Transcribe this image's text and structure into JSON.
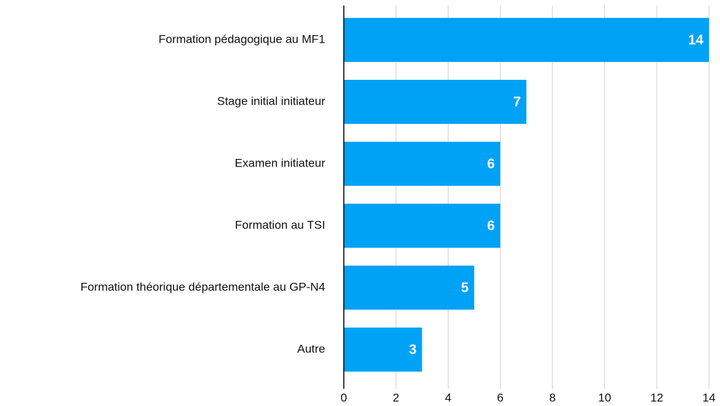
{
  "chart_data": {
    "type": "bar",
    "orientation": "horizontal",
    "categories": [
      "Formation pédagogique au MF1",
      "Stage initial initiateur",
      "Examen initiateur",
      "Formation au TSI",
      "Formation théorique départementale au GP-N4",
      "Autre"
    ],
    "values": [
      14,
      7,
      6,
      6,
      5,
      3
    ],
    "color": "#00a2f5",
    "xlim": [
      0,
      14
    ],
    "xticks": [
      0,
      2,
      4,
      6,
      8,
      10,
      12,
      14
    ],
    "grid": true
  }
}
